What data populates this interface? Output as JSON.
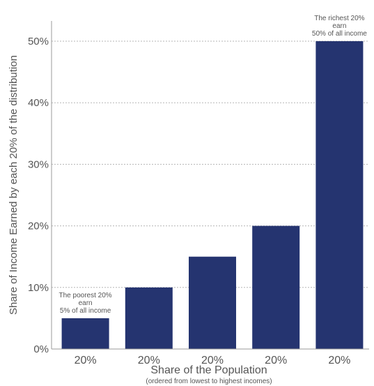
{
  "chart_data": {
    "type": "bar",
    "categories": [
      "20%",
      "20%",
      "20%",
      "20%",
      "20%"
    ],
    "values": [
      5,
      10,
      15,
      20,
      50
    ],
    "xlabel": "Share of the Population",
    "xlabel_sub": "(ordered from lowest to highest incomes)",
    "ylabel": "Share of Income Earned by each 20% of the distribution",
    "yticks": [
      "0%",
      "10%",
      "20%",
      "30%",
      "40%",
      "50%"
    ],
    "ylim": [
      0,
      50
    ],
    "grid": true,
    "bar_color": "#253470",
    "annotations": [
      {
        "bar": 0,
        "lines": [
          "The poorest 20%",
          "earn",
          "5% of all income"
        ]
      },
      {
        "bar": 4,
        "lines": [
          "The richest 20%",
          "earn",
          "50% of all income"
        ]
      }
    ]
  }
}
